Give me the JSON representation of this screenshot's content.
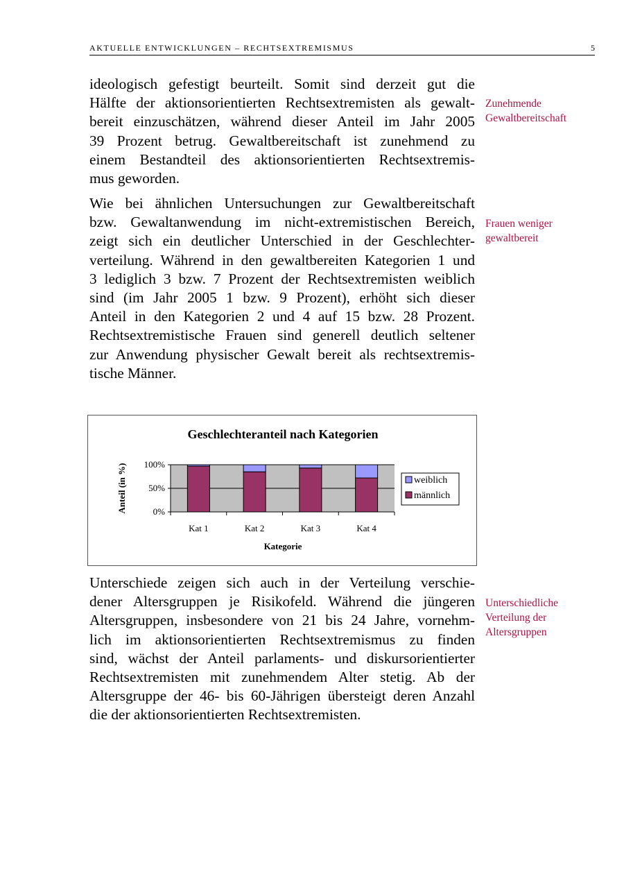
{
  "header": {
    "title": "AKTUELLE ENTWICKLUNGEN – RECHTSEXTREMISMUS",
    "page_number": "5"
  },
  "paragraphs": [
    {
      "lines": [
        "ideologisch gefestigt beurteilt. Somit sind derzeit gut die",
        "Hälfte der aktionsorientierten Rechtsextremisten als gewalt-",
        "bereit einzuschätzen, während dieser Anteil im Jahr 2005",
        "39 Prozent betrug. Gewaltbereitschaft ist zunehmend zu",
        "einem Bestandteil des aktionsorientierten Rechtsextremis-",
        "mus geworden."
      ]
    },
    {
      "lines": [
        "Wie bei ähnlichen Untersuchungen zur Gewaltbereitschaft",
        "bzw. Gewaltanwendung im nicht-extremistischen Bereich,",
        "zeigt sich ein deutlicher Unterschied in der Geschlechter-",
        "verteilung. Während in den gewaltbereiten Kategorien 1 und",
        "3 lediglich 3 bzw. 7 Prozent der Rechtsextremisten weiblich",
        "sind (im Jahr 2005 1 bzw. 9 Prozent), erhöht sich dieser",
        "Anteil in den Kategorien 2 und 4 auf 15 bzw. 28 Prozent.",
        "Rechtsextremistische Frauen sind generell deutlich seltener",
        "zur Anwendung physischer Gewalt bereit als rechtsextremis-",
        "tische Männer."
      ]
    },
    {
      "lines": [
        "Unterschiede zeigen sich auch in der Verteilung verschie-",
        "dener Altersgruppen je Risikofeld. Während die jüngeren",
        "Altersgruppen, insbesondere von 21 bis 24 Jahre, vornehm-",
        "lich im aktionsorientierten Rechtsextremismus zu finden",
        "sind, wächst der Anteil parlaments- und diskursorientierter",
        "Rechtsextremisten mit zunehmendem Alter stetig. Ab der",
        "Altersgruppe der 46- bis 60-Jährigen übersteigt deren Anzahl",
        "die der aktionsorientierten Rechtsextremisten."
      ]
    }
  ],
  "margin_notes": [
    {
      "lines": [
        "Zunehmende",
        "Gewaltbereitschaft"
      ]
    },
    {
      "lines": [
        "Frauen weniger",
        "gewaltbereit"
      ]
    },
    {
      "lines": [
        "Unterschiedliche",
        "Verteilung der",
        "Altersgruppen"
      ]
    }
  ],
  "chart_data": {
    "type": "bar",
    "stacked": true,
    "percent": true,
    "title": "Geschlechteranteil nach Kategorien",
    "xlabel": "Kategorie",
    "ylabel": "Anteil (in %)",
    "categories": [
      "Kat 1",
      "Kat 2",
      "Kat 3",
      "Kat 4"
    ],
    "yticks": [
      "0%",
      "50%",
      "100%"
    ],
    "ylim": [
      0,
      100
    ],
    "grid": true,
    "legend": "right",
    "series": [
      {
        "name": "männlich",
        "values": [
          97,
          85,
          93,
          72
        ],
        "color": "#993366"
      },
      {
        "name": "weiblich",
        "values": [
          3,
          15,
          7,
          28
        ],
        "color": "#9999ff"
      }
    ],
    "plot_background": "#c0c0c0"
  },
  "colors": {
    "note": "#b01040"
  }
}
